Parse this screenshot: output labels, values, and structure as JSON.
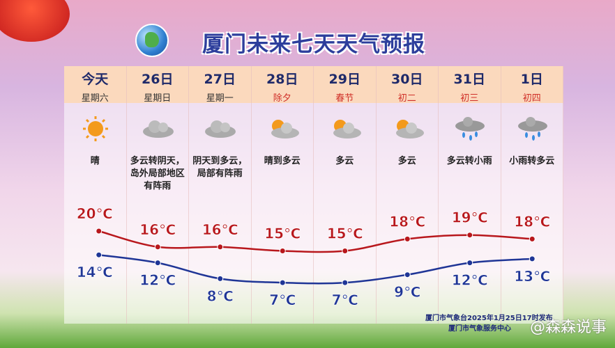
{
  "title": "厦门未来七天天气预报",
  "days": [
    {
      "day": "今天",
      "sub": "星期六",
      "festive": false,
      "icon": "sun-icon",
      "desc": "晴"
    },
    {
      "day": "26日",
      "sub": "星期日",
      "festive": false,
      "icon": "cloud-icon",
      "desc": "多云转阴天，岛外局部地区有阵雨"
    },
    {
      "day": "27日",
      "sub": "星期一",
      "festive": false,
      "icon": "cloud-icon",
      "desc": "阴天到多云，局部有阵雨"
    },
    {
      "day": "28日",
      "sub": "除夕",
      "festive": true,
      "icon": "sun-cloud-icon",
      "desc": "晴到多云"
    },
    {
      "day": "29日",
      "sub": "春节",
      "festive": true,
      "icon": "sun-cloud-icon",
      "desc": "多云"
    },
    {
      "day": "30日",
      "sub": "初二",
      "festive": true,
      "icon": "sun-cloud-icon",
      "desc": "多云"
    },
    {
      "day": "31日",
      "sub": "初三",
      "festive": true,
      "icon": "rain-cloud-icon",
      "desc": "多云转小雨"
    },
    {
      "day": "1日",
      "sub": "初四",
      "festive": true,
      "icon": "rain-cloud-icon",
      "desc": "小雨转多云"
    }
  ],
  "chart_data": {
    "type": "line",
    "categories": [
      "今天",
      "26日",
      "27日",
      "28日",
      "29日",
      "30日",
      "31日",
      "1日"
    ],
    "unit": "℃",
    "series": [
      {
        "key": "high",
        "values": [
          20,
          16,
          16,
          15,
          15,
          18,
          19,
          18
        ],
        "color": "#b8171c"
      },
      {
        "key": "low",
        "values": [
          14,
          12,
          8,
          7,
          7,
          9,
          12,
          13
        ],
        "color": "#1f3596"
      }
    ],
    "labels": {
      "high": [
        "20℃",
        "16℃",
        "16℃",
        "15℃",
        "15℃",
        "18℃",
        "19℃",
        "18℃"
      ],
      "low": [
        "14℃",
        "12℃",
        "8℃",
        "7℃",
        "7℃",
        "9℃",
        "12℃",
        "13℃"
      ]
    }
  },
  "footer": {
    "line1": "厦门市气象台2025年1月25日17时发布",
    "line2": "厦门市气象服务中心"
  },
  "watermark": "@森森说事"
}
